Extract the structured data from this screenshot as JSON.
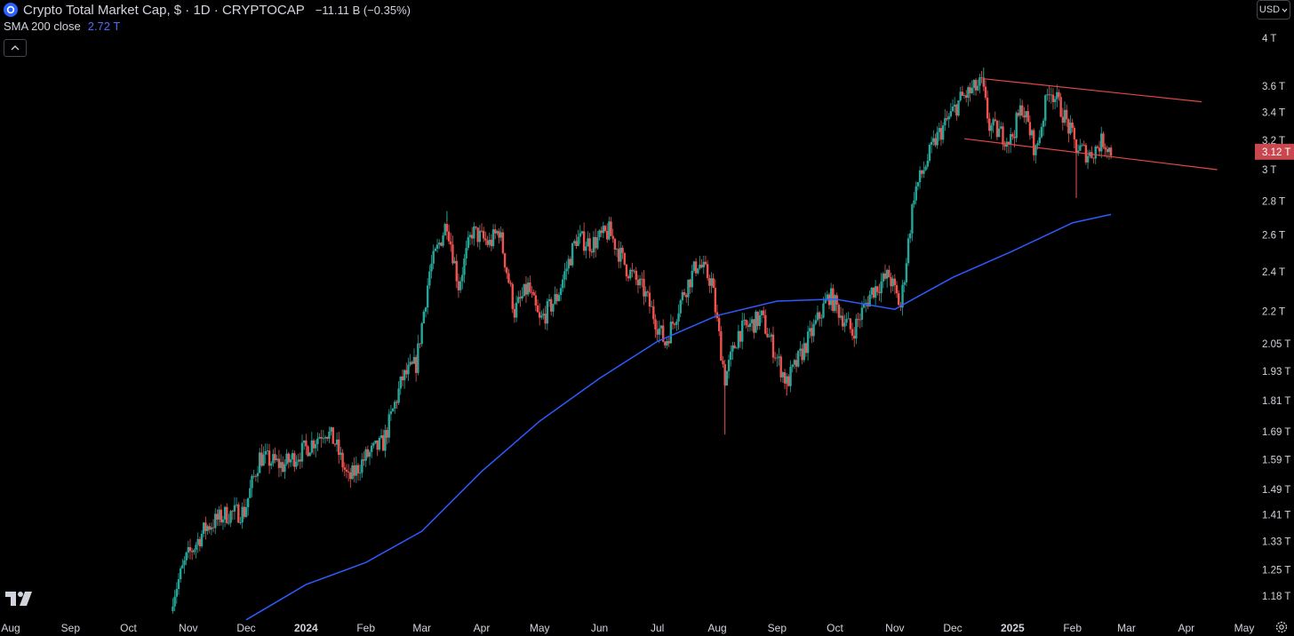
{
  "header": {
    "title": "Crypto Total Market Cap, $ · 1D · CRYPTOCAP",
    "change": "−11.11 B (−0.35%)",
    "indicator_name": "SMA 200 close",
    "indicator_value": "2.72 T",
    "currency": "USD"
  },
  "colors": {
    "up": "#26a69a",
    "down": "#ef5350",
    "sma": "#2e5bff",
    "channel": "#e04848",
    "price_tag": "#c9474e"
  },
  "chart_data": {
    "type": "candlestick",
    "scale": "log",
    "title": "Crypto Total Market Cap, $ · 1D · CRYPTOCAP",
    "ylim": [
      1.12,
      4.2
    ],
    "yticks": [
      {
        "v": 4.0,
        "label": "4 T"
      },
      {
        "v": 3.6,
        "label": "3.6 T"
      },
      {
        "v": 3.4,
        "label": "3.4 T"
      },
      {
        "v": 3.2,
        "label": "3.2 T"
      },
      {
        "v": 3.0,
        "label": "3 T"
      },
      {
        "v": 2.8,
        "label": "2.8 T"
      },
      {
        "v": 2.6,
        "label": "2.6 T"
      },
      {
        "v": 2.4,
        "label": "2.4 T"
      },
      {
        "v": 2.2,
        "label": "2.2 T"
      },
      {
        "v": 2.05,
        "label": "2.05 T"
      },
      {
        "v": 1.93,
        "label": "1.93 T"
      },
      {
        "v": 1.81,
        "label": "1.81 T"
      },
      {
        "v": 1.69,
        "label": "1.69 T"
      },
      {
        "v": 1.59,
        "label": "1.59 T"
      },
      {
        "v": 1.49,
        "label": "1.49 T"
      },
      {
        "v": 1.41,
        "label": "1.41 T"
      },
      {
        "v": 1.33,
        "label": "1.33 T"
      },
      {
        "v": 1.25,
        "label": "1.25 T"
      },
      {
        "v": 1.18,
        "label": "1.18 T"
      }
    ],
    "xticks": [
      {
        "date": "2023-08-01",
        "label": "Aug"
      },
      {
        "date": "2023-09-01",
        "label": "Sep"
      },
      {
        "date": "2023-10-01",
        "label": "Oct"
      },
      {
        "date": "2023-11-01",
        "label": "Nov"
      },
      {
        "date": "2023-12-01",
        "label": "Dec"
      },
      {
        "date": "2024-01-01",
        "label": "2024",
        "bold": true
      },
      {
        "date": "2024-02-01",
        "label": "Feb"
      },
      {
        "date": "2024-03-01",
        "label": "Mar"
      },
      {
        "date": "2024-04-01",
        "label": "Apr"
      },
      {
        "date": "2024-05-01",
        "label": "May"
      },
      {
        "date": "2024-06-01",
        "label": "Jun"
      },
      {
        "date": "2024-07-01",
        "label": "Jul"
      },
      {
        "date": "2024-08-01",
        "label": "Aug"
      },
      {
        "date": "2024-09-01",
        "label": "Sep"
      },
      {
        "date": "2024-10-01",
        "label": "Oct"
      },
      {
        "date": "2024-11-01",
        "label": "Nov"
      },
      {
        "date": "2024-12-01",
        "label": "Dec"
      },
      {
        "date": "2025-01-01",
        "label": "2025",
        "bold": true
      },
      {
        "date": "2025-02-01",
        "label": "Feb"
      },
      {
        "date": "2025-03-01",
        "label": "Mar"
      },
      {
        "date": "2025-04-01",
        "label": "Apr"
      },
      {
        "date": "2025-05-01",
        "label": "May"
      }
    ],
    "price_path": [
      {
        "date": "2023-10-24",
        "v": 1.18
      },
      {
        "date": "2023-10-31",
        "v": 1.28
      },
      {
        "date": "2023-11-10",
        "v": 1.37
      },
      {
        "date": "2023-11-20",
        "v": 1.41
      },
      {
        "date": "2023-11-30",
        "v": 1.42
      },
      {
        "date": "2023-12-08",
        "v": 1.6
      },
      {
        "date": "2023-12-20",
        "v": 1.57
      },
      {
        "date": "2024-01-01",
        "v": 1.63
      },
      {
        "date": "2024-01-11",
        "v": 1.7
      },
      {
        "date": "2024-01-16",
        "v": 1.65
      },
      {
        "date": "2024-01-23",
        "v": 1.52
      },
      {
        "date": "2024-02-01",
        "v": 1.6
      },
      {
        "date": "2024-02-10",
        "v": 1.65
      },
      {
        "date": "2024-02-20",
        "v": 1.9
      },
      {
        "date": "2024-02-27",
        "v": 1.96
      },
      {
        "date": "2024-03-05",
        "v": 2.4
      },
      {
        "date": "2024-03-14",
        "v": 2.68
      },
      {
        "date": "2024-03-20",
        "v": 2.33
      },
      {
        "date": "2024-03-27",
        "v": 2.62
      },
      {
        "date": "2024-04-05",
        "v": 2.55
      },
      {
        "date": "2024-04-10",
        "v": 2.63
      },
      {
        "date": "2024-04-18",
        "v": 2.2
      },
      {
        "date": "2024-04-25",
        "v": 2.32
      },
      {
        "date": "2024-05-01",
        "v": 2.15
      },
      {
        "date": "2024-05-10",
        "v": 2.27
      },
      {
        "date": "2024-05-20",
        "v": 2.58
      },
      {
        "date": "2024-05-28",
        "v": 2.55
      },
      {
        "date": "2024-06-06",
        "v": 2.62
      },
      {
        "date": "2024-06-15",
        "v": 2.42
      },
      {
        "date": "2024-06-24",
        "v": 2.3
      },
      {
        "date": "2024-07-05",
        "v": 2.05
      },
      {
        "date": "2024-07-15",
        "v": 2.3
      },
      {
        "date": "2024-07-22",
        "v": 2.45
      },
      {
        "date": "2024-07-29",
        "v": 2.35
      },
      {
        "date": "2024-08-05",
        "v": 1.9
      },
      {
        "date": "2024-08-12",
        "v": 2.1
      },
      {
        "date": "2024-08-24",
        "v": 2.17
      },
      {
        "date": "2024-09-06",
        "v": 1.88
      },
      {
        "date": "2024-09-19",
        "v": 2.1
      },
      {
        "date": "2024-09-28",
        "v": 2.28
      },
      {
        "date": "2024-10-10",
        "v": 2.1
      },
      {
        "date": "2024-10-20",
        "v": 2.3
      },
      {
        "date": "2024-10-29",
        "v": 2.38
      },
      {
        "date": "2024-11-04",
        "v": 2.22
      },
      {
        "date": "2024-11-11",
        "v": 2.85
      },
      {
        "date": "2024-11-22",
        "v": 3.2
      },
      {
        "date": "2024-12-05",
        "v": 3.5
      },
      {
        "date": "2024-12-16",
        "v": 3.62
      },
      {
        "date": "2024-12-20",
        "v": 3.3
      },
      {
        "date": "2024-12-31",
        "v": 3.2
      },
      {
        "date": "2025-01-06",
        "v": 3.45
      },
      {
        "date": "2025-01-13",
        "v": 3.12
      },
      {
        "date": "2025-01-20",
        "v": 3.6
      },
      {
        "date": "2025-01-27",
        "v": 3.4
      },
      {
        "date": "2025-02-03",
        "v": 3.15
      },
      {
        "date": "2025-02-10",
        "v": 3.1
      },
      {
        "date": "2025-02-17",
        "v": 3.2
      },
      {
        "date": "2025-02-21",
        "v": 3.12
      }
    ],
    "wick_extremes": [
      {
        "date": "2024-08-05",
        "low": 1.68
      },
      {
        "date": "2025-02-03",
        "low": 2.82
      },
      {
        "date": "2024-12-17",
        "high": 3.75
      },
      {
        "date": "2024-09-06",
        "low": 1.83
      },
      {
        "date": "2024-03-14",
        "high": 2.74
      }
    ],
    "sma200": [
      {
        "date": "2023-12-01",
        "v": 1.12
      },
      {
        "date": "2024-01-01",
        "v": 1.21
      },
      {
        "date": "2024-02-01",
        "v": 1.27
      },
      {
        "date": "2024-03-01",
        "v": 1.36
      },
      {
        "date": "2024-04-01",
        "v": 1.55
      },
      {
        "date": "2024-05-01",
        "v": 1.73
      },
      {
        "date": "2024-06-01",
        "v": 1.9
      },
      {
        "date": "2024-07-01",
        "v": 2.06
      },
      {
        "date": "2024-08-01",
        "v": 2.18
      },
      {
        "date": "2024-09-01",
        "v": 2.25
      },
      {
        "date": "2024-10-01",
        "v": 2.26
      },
      {
        "date": "2024-11-01",
        "v": 2.21
      },
      {
        "date": "2024-12-01",
        "v": 2.37
      },
      {
        "date": "2025-01-01",
        "v": 2.51
      },
      {
        "date": "2025-02-01",
        "v": 2.67
      },
      {
        "date": "2025-02-21",
        "v": 2.72
      }
    ],
    "channel": [
      {
        "from": {
          "date": "2024-12-17",
          "v": 3.66
        },
        "to": {
          "date": "2025-04-09",
          "v": 3.48
        }
      },
      {
        "from": {
          "date": "2024-12-07",
          "v": 3.21
        },
        "to": {
          "date": "2025-04-17",
          "v": 3.0
        }
      }
    ],
    "last_price": {
      "v": 3.12,
      "label": "3.12 T"
    },
    "grid": false,
    "legend": "top-left"
  }
}
